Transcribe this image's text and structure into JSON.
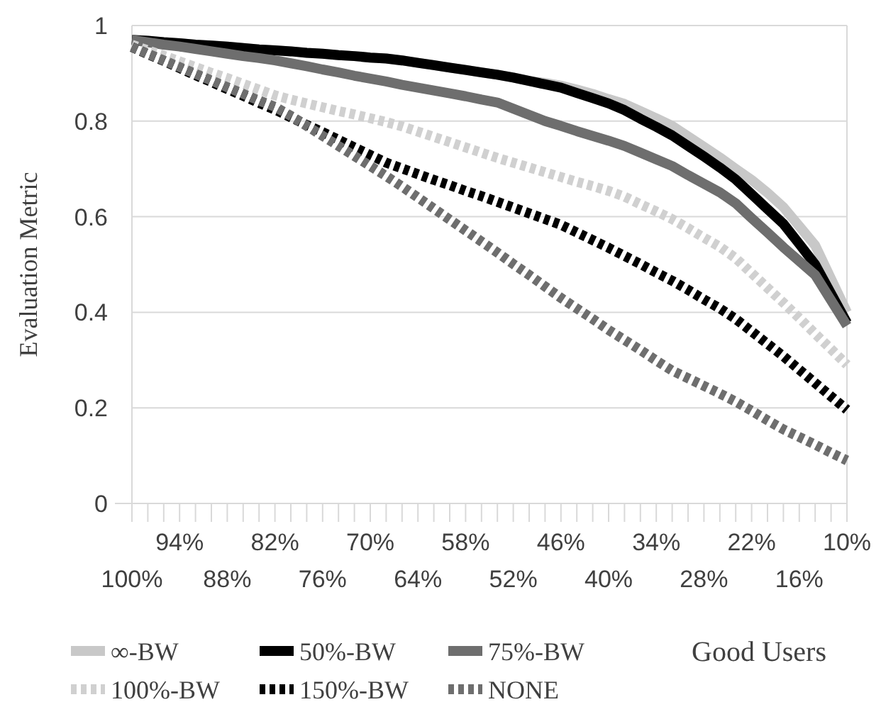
{
  "chart_data": {
    "type": "line",
    "ylabel": "Evaluation Metric",
    "xlabel": "Good Users",
    "categories": [
      "100%",
      null,
      null,
      "94%",
      null,
      null,
      "88%",
      null,
      null,
      "82%",
      null,
      null,
      "76%",
      null,
      null,
      "70%",
      null,
      null,
      "64%",
      null,
      null,
      "58%",
      null,
      null,
      "52%",
      null,
      null,
      "46%",
      null,
      null,
      "40%",
      null,
      null,
      "34%",
      null,
      null,
      "28%",
      null,
      null,
      "22%",
      null,
      null,
      "16%",
      null,
      null,
      "10%"
    ],
    "ylim": [
      0,
      1
    ],
    "yticks": [
      0,
      {
        "value": 0.2,
        "label": "0.2"
      },
      {
        "value": 0.4,
        "label": "0.4"
      },
      {
        "value": 0.6,
        "label": "0.6"
      },
      {
        "value": 0.8,
        "label": "0.8"
      },
      1
    ],
    "grid": "y",
    "legend": "bottom",
    "marker": "none",
    "series": [
      {
        "name": "∞-BW",
        "color": "#c8c8c8",
        "line_style": "solid",
        "values": [
          0.97,
          0.968,
          0.965,
          0.963,
          0.96,
          0.958,
          0.956,
          0.953,
          0.95,
          0.948,
          0.946,
          0.943,
          0.941,
          0.938,
          0.936,
          0.933,
          0.931,
          0.927,
          0.922,
          0.917,
          0.912,
          0.907,
          0.902,
          0.897,
          0.891,
          0.884,
          0.88,
          0.874,
          0.866,
          0.857,
          0.846,
          0.836,
          0.821,
          0.806,
          0.79,
          0.768,
          0.746,
          0.724,
          0.7,
          0.677,
          0.65,
          0.62,
          0.58,
          0.54,
          0.47,
          0.4
        ]
      },
      {
        "name": "50%-BW",
        "color": "#000000",
        "line_style": "solid",
        "values": [
          0.97,
          0.968,
          0.965,
          0.963,
          0.96,
          0.958,
          0.956,
          0.953,
          0.95,
          0.948,
          0.946,
          0.943,
          0.941,
          0.938,
          0.936,
          0.933,
          0.931,
          0.927,
          0.922,
          0.917,
          0.912,
          0.907,
          0.902,
          0.897,
          0.891,
          0.884,
          0.877,
          0.87,
          0.859,
          0.848,
          0.837,
          0.823,
          0.805,
          0.788,
          0.77,
          0.748,
          0.726,
          0.703,
          0.678,
          0.647,
          0.616,
          0.585,
          0.543,
          0.5,
          0.439,
          0.378
        ]
      },
      {
        "name": "75%-BW",
        "color": "#6e6e6e",
        "line_style": "solid",
        "values": [
          0.97,
          0.965,
          0.96,
          0.956,
          0.951,
          0.946,
          0.941,
          0.936,
          0.932,
          0.927,
          0.921,
          0.915,
          0.908,
          0.902,
          0.895,
          0.889,
          0.883,
          0.876,
          0.87,
          0.864,
          0.858,
          0.852,
          0.845,
          0.839,
          0.826,
          0.813,
          0.8,
          0.79,
          0.779,
          0.769,
          0.759,
          0.748,
          0.734,
          0.72,
          0.706,
          0.687,
          0.669,
          0.651,
          0.628,
          0.597,
          0.567,
          0.536,
          0.507,
          0.478,
          0.425,
          0.372
        ]
      },
      {
        "name": "100%-BW",
        "color": "#d0d0d0",
        "line_style": "dotted",
        "values": [
          0.96,
          0.948,
          0.937,
          0.925,
          0.913,
          0.901,
          0.89,
          0.878,
          0.866,
          0.854,
          0.845,
          0.837,
          0.829,
          0.821,
          0.814,
          0.806,
          0.798,
          0.789,
          0.778,
          0.767,
          0.756,
          0.745,
          0.734,
          0.723,
          0.713,
          0.703,
          0.693,
          0.683,
          0.673,
          0.664,
          0.654,
          0.642,
          0.626,
          0.611,
          0.595,
          0.576,
          0.556,
          0.537,
          0.513,
          0.482,
          0.451,
          0.42,
          0.388,
          0.355,
          0.323,
          0.29
        ]
      },
      {
        "name": "150%-BW",
        "color": "#000000",
        "line_style": "dotted",
        "values": [
          0.955,
          0.94,
          0.926,
          0.911,
          0.896,
          0.882,
          0.867,
          0.853,
          0.838,
          0.824,
          0.808,
          0.792,
          0.777,
          0.761,
          0.745,
          0.729,
          0.713,
          0.701,
          0.689,
          0.677,
          0.666,
          0.654,
          0.643,
          0.631,
          0.619,
          0.607,
          0.595,
          0.583,
          0.567,
          0.551,
          0.535,
          0.518,
          0.501,
          0.483,
          0.466,
          0.447,
          0.427,
          0.408,
          0.386,
          0.36,
          0.334,
          0.308,
          0.28,
          0.252,
          0.224,
          0.196
        ]
      },
      {
        "name": "NONE",
        "color": "#6e6e6e",
        "line_style": "dotted",
        "values": [
          0.955,
          0.941,
          0.927,
          0.913,
          0.899,
          0.885,
          0.871,
          0.857,
          0.843,
          0.83,
          0.811,
          0.79,
          0.769,
          0.748,
          0.727,
          0.706,
          0.685,
          0.663,
          0.64,
          0.617,
          0.594,
          0.571,
          0.548,
          0.525,
          0.501,
          0.478,
          0.454,
          0.43,
          0.408,
          0.386,
          0.363,
          0.342,
          0.321,
          0.299,
          0.278,
          0.262,
          0.246,
          0.23,
          0.213,
          0.194,
          0.174,
          0.155,
          0.139,
          0.123,
          0.106,
          0.09
        ]
      }
    ]
  }
}
